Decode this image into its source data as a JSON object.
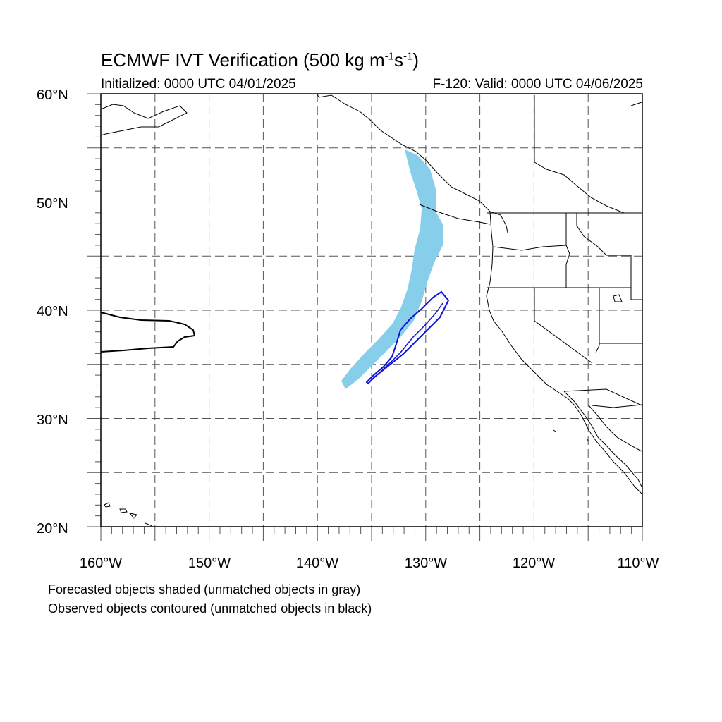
{
  "header": {
    "title_main": "ECMWF IVT Verification (500 kg m",
    "title_sup1": "-1",
    "title_mid": "s",
    "title_sup2": "-1",
    "title_end": ")",
    "initialized": "Initialized: 0000 UTC 04/01/2025",
    "valid": "F-120: Valid: 0000 UTC 04/06/2025"
  },
  "map": {
    "lon_range": [
      -160,
      -110
    ],
    "lat_range": [
      20,
      60
    ],
    "gridline_style": "dashed",
    "lon_labels": [
      "160°W",
      "150°W",
      "140°W",
      "130°W",
      "120°W",
      "110°W"
    ],
    "lat_labels": [
      "60°N",
      "50°N",
      "40°N",
      "30°N",
      "20°N"
    ],
    "forecast_color": "#87ceeb",
    "observed_matched_color": "#0000cc",
    "observed_unmatched_color": "#000000",
    "coast_color": "#000000"
  },
  "legend": {
    "line1": "Forecasted objects shaded (unmatched objects in gray)",
    "line2": "Observed objects contoured (unmatched objects in black)"
  }
}
